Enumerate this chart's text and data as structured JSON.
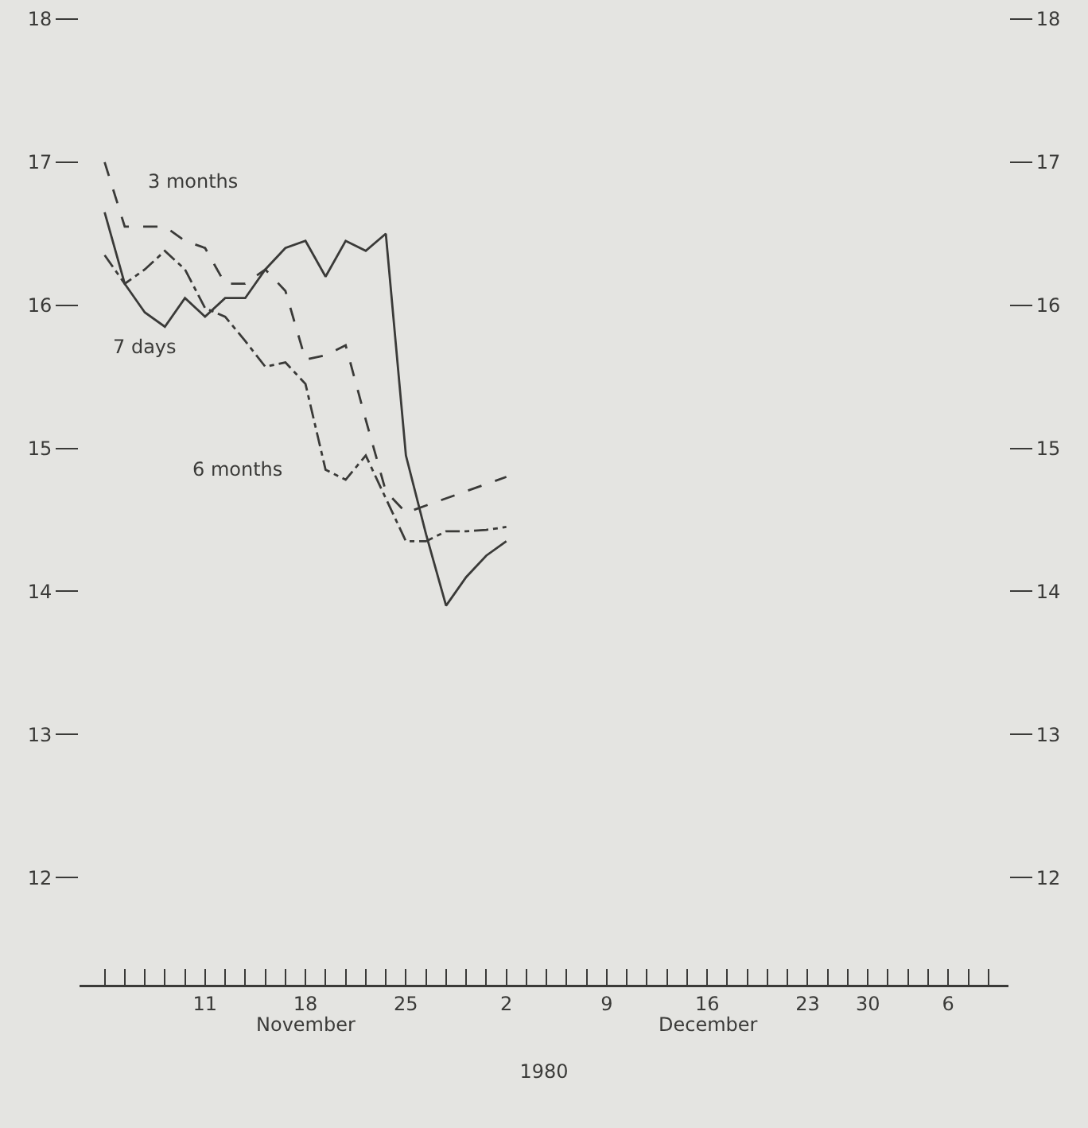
{
  "chart_data": {
    "type": "line",
    "xlabel": "1980",
    "categories": [
      null,
      null,
      null,
      null,
      null,
      "11",
      null,
      null,
      null,
      null,
      "18",
      null,
      null,
      null,
      null,
      "25",
      null,
      null,
      null,
      null,
      "2",
      null,
      null,
      null,
      null,
      "9",
      null,
      null,
      null,
      null,
      "16",
      null,
      null,
      null,
      null,
      "23",
      null,
      null,
      "30",
      null,
      null,
      null,
      "6",
      null,
      null
    ],
    "series": [
      {
        "name": "7 days",
        "color": "#3a3a38",
        "line_style": "solid",
        "values": [
          16.65,
          16.15,
          15.95,
          15.85,
          16.05,
          15.92,
          16.05,
          16.05,
          16.25,
          16.4,
          16.45,
          16.2,
          16.45,
          16.38,
          16.5,
          14.95,
          14.4,
          13.9,
          14.1,
          14.25,
          14.35,
          null,
          null,
          null,
          null,
          null,
          null,
          null,
          null,
          null,
          null,
          null,
          null,
          null,
          null,
          null,
          null,
          null,
          null,
          null,
          null,
          null,
          null,
          null,
          null
        ]
      },
      {
        "name": "3 months",
        "color": "#3a3a38",
        "line_style": "dashed",
        "values": [
          17.0,
          16.55,
          16.55,
          16.55,
          16.45,
          16.4,
          16.15,
          16.15,
          16.25,
          16.1,
          15.62,
          15.65,
          15.72,
          15.2,
          14.7,
          14.55,
          14.6,
          14.65,
          14.7,
          14.75,
          14.8,
          null,
          null,
          null,
          null,
          null,
          null,
          null,
          null,
          null,
          null,
          null,
          null,
          null,
          null,
          null,
          null,
          null,
          null,
          null,
          null,
          null,
          null,
          null,
          null
        ]
      },
      {
        "name": "6 months",
        "color": "#3a3a38",
        "line_style": "dashdot",
        "values": [
          16.35,
          16.15,
          16.25,
          16.38,
          16.25,
          15.98,
          15.92,
          15.75,
          15.57,
          15.6,
          15.45,
          14.85,
          14.78,
          14.95,
          14.65,
          14.35,
          14.35,
          14.42,
          14.42,
          14.43,
          14.45,
          null,
          null,
          null,
          null,
          null,
          null,
          null,
          null,
          null,
          null,
          null,
          null,
          null,
          null,
          null,
          null,
          null,
          null,
          null,
          null,
          null,
          null,
          null,
          null
        ]
      }
    ],
    "ylim": [
      11.25,
      18
    ],
    "yticks": [
      12,
      13,
      14,
      15,
      16,
      17,
      18
    ],
    "y2lim": [
      11.25,
      18
    ],
    "y2ticks": [
      12,
      13,
      14,
      15,
      16,
      17,
      18
    ],
    "annotations": [
      "November",
      "December"
    ],
    "grid": false,
    "legend": false,
    "marker": "none"
  }
}
